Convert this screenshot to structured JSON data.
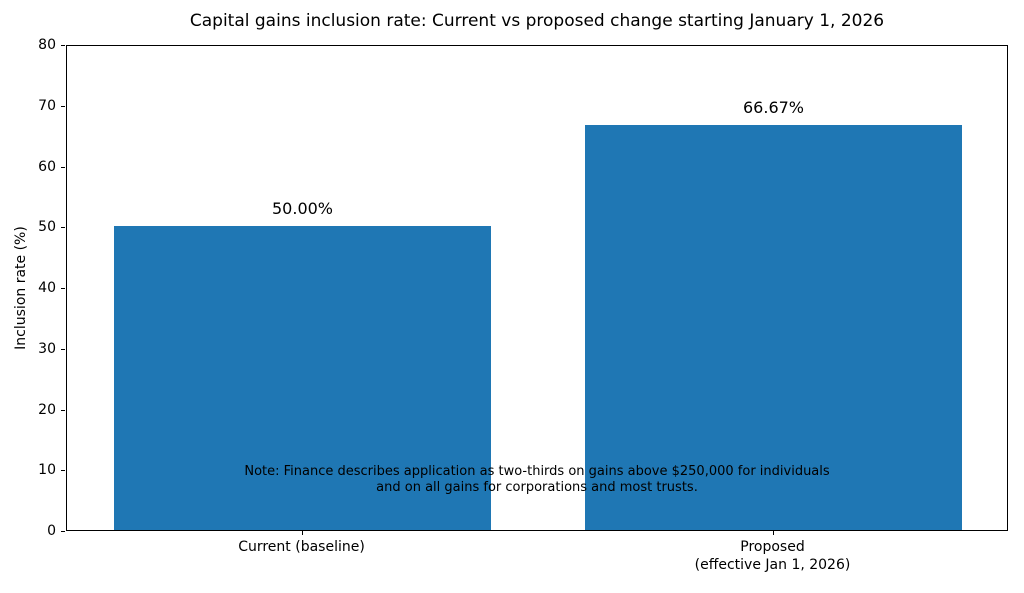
{
  "chart_data": {
    "type": "bar",
    "title": "Capital gains inclusion rate: Current vs proposed change starting January 1, 2026",
    "ylabel": "Inclusion rate (%)",
    "xlabel": "",
    "categories": [
      "Current (baseline)",
      "Proposed\n(effective Jan 1, 2026)"
    ],
    "values": [
      50,
      66.67
    ],
    "value_labels": [
      "50.00%",
      "66.67%"
    ],
    "ylim": [
      0,
      80
    ],
    "yticks": [
      0,
      10,
      20,
      30,
      40,
      50,
      60,
      70,
      80
    ],
    "bar_color": "#1f77b4",
    "grid": false,
    "legend": false,
    "annotation": "Note: Finance describes application as two-thirds on gains above $250,000 for individuals\nand on all gains for corporations and most trusts."
  }
}
